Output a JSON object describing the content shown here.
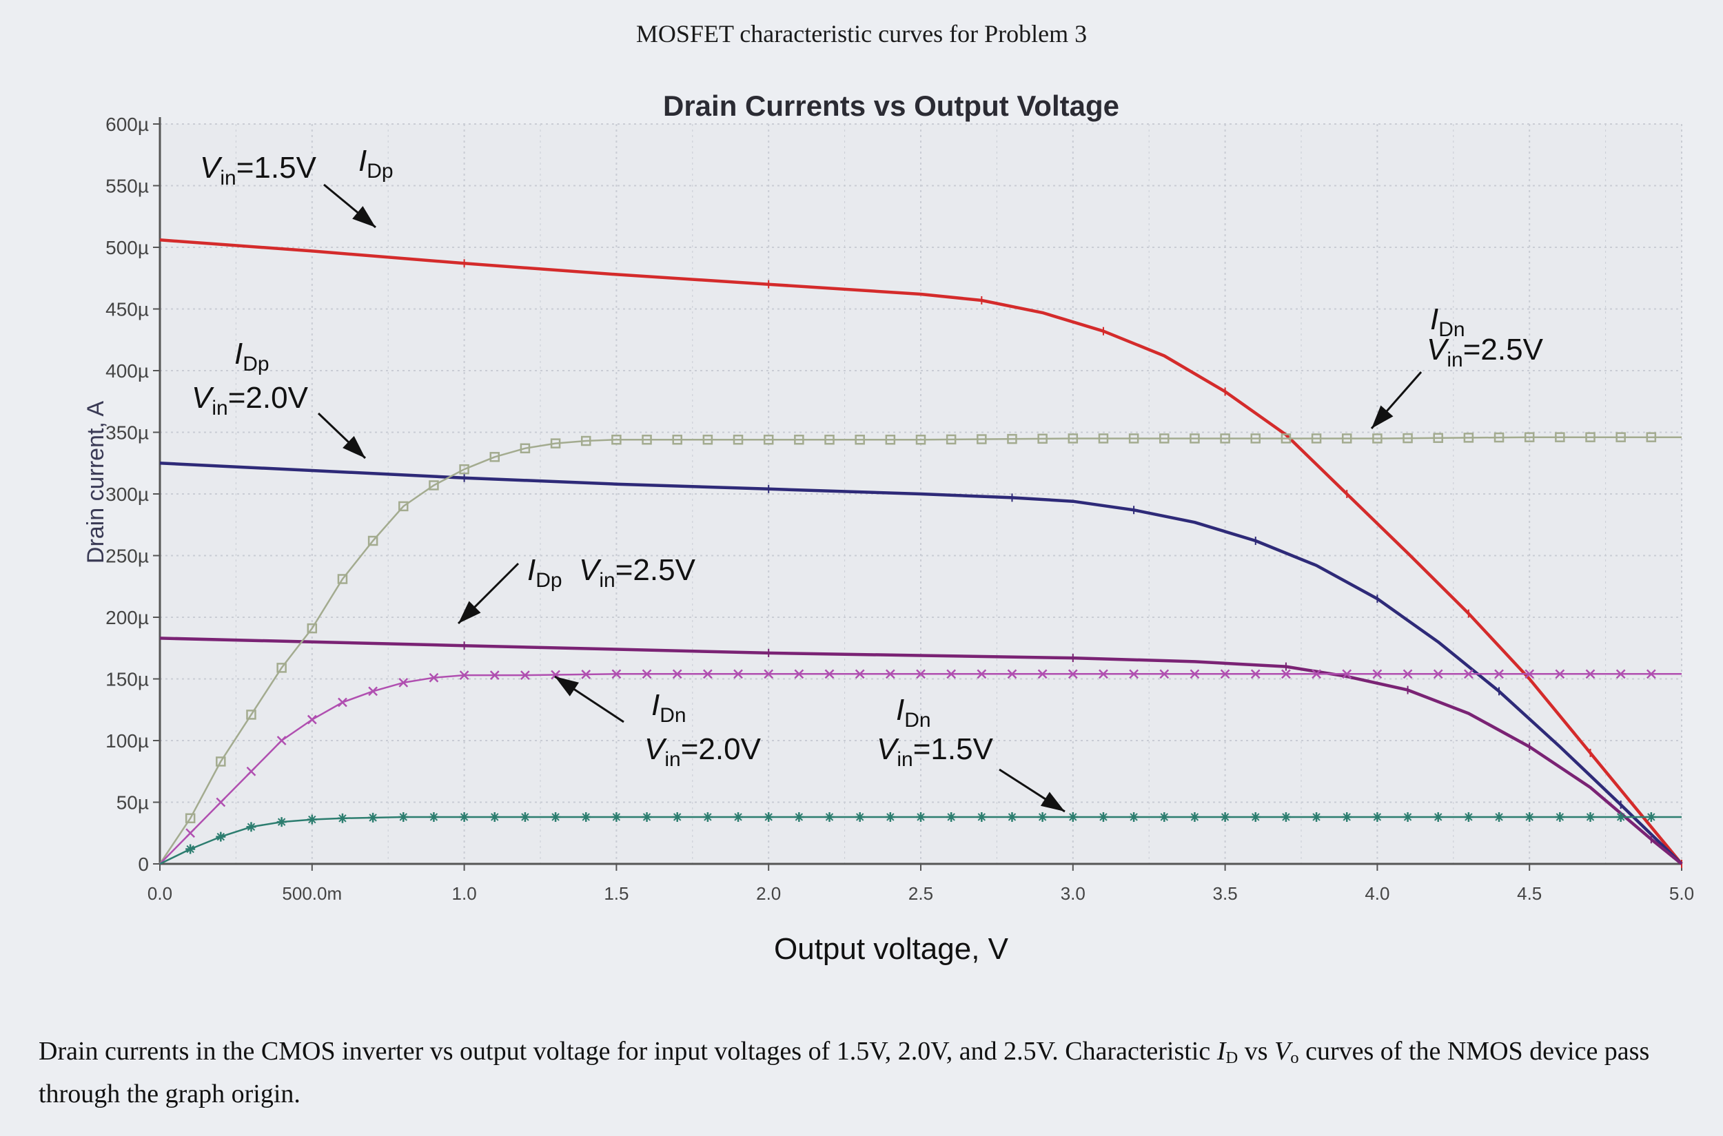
{
  "page_title": "MOSFET characteristic curves for Problem 3",
  "caption": {
    "part1": "Drain currents in the CMOS inverter vs output voltage for input voltages of 1.5V, 2.0V, and 2.5V.  Characteristic ",
    "id_letter": "I",
    "id_sub": "D",
    "part2": " vs ",
    "vo_letter": "V",
    "vo_sub": "o",
    "part3": " curves of the NMOS device pass through the graph origin."
  },
  "colors": {
    "idp_1_5": "#d42b2b",
    "idp_2_0": "#2e2a78",
    "idp_2_5": "#7a2374",
    "idn_2_5": "#a3ab8f",
    "idn_2_0": "#b04fb0",
    "idn_1_5": "#2c7d6f",
    "grid": "#c9ccd4",
    "axis": "#555555"
  },
  "chart_data": {
    "type": "line",
    "title": "Drain Currents vs Output Voltage",
    "xlabel": "Output voltage, V",
    "ylabel": "Drain current, A",
    "xlim": [
      0,
      5
    ],
    "ylim": [
      0,
      600
    ],
    "y_unit": "µA",
    "grid": true,
    "x_ticks": [
      {
        "v": 0,
        "label": "0.0"
      },
      {
        "v": 0.5,
        "label": "500.0m"
      },
      {
        "v": 1,
        "label": "1.0"
      },
      {
        "v": 1.5,
        "label": "1.5"
      },
      {
        "v": 2,
        "label": "2.0"
      },
      {
        "v": 2.5,
        "label": "2.5"
      },
      {
        "v": 3,
        "label": "3.0"
      },
      {
        "v": 3.5,
        "label": "3.5"
      },
      {
        "v": 4,
        "label": "4.0"
      },
      {
        "v": 4.5,
        "label": "4.5"
      },
      {
        "v": 5,
        "label": "5.0"
      }
    ],
    "y_ticks": [
      {
        "v": 0,
        "label": "0"
      },
      {
        "v": 50,
        "label": "50µ"
      },
      {
        "v": 100,
        "label": "100µ"
      },
      {
        "v": 150,
        "label": "150µ"
      },
      {
        "v": 200,
        "label": "200µ"
      },
      {
        "v": 250,
        "label": "250µ"
      },
      {
        "v": 300,
        "label": "300µ"
      },
      {
        "v": 350,
        "label": "350µ"
      },
      {
        "v": 400,
        "label": "400µ"
      },
      {
        "v": 450,
        "label": "450µ"
      },
      {
        "v": 500,
        "label": "500µ"
      },
      {
        "v": 550,
        "label": "550µ"
      },
      {
        "v": 600,
        "label": "600µ"
      }
    ],
    "series": [
      {
        "key": "idp_1_5",
        "marker": "line",
        "x": [
          0,
          0.5,
          1.0,
          1.5,
          2.0,
          2.5,
          2.7,
          2.9,
          3.1,
          3.3,
          3.5,
          3.7,
          3.9,
          4.1,
          4.3,
          4.5,
          4.7,
          4.9,
          5.0
        ],
        "y": [
          506,
          497,
          487,
          478,
          470,
          462,
          457,
          447,
          432,
          412,
          383,
          348,
          300,
          252,
          203,
          150,
          90,
          30,
          0
        ]
      },
      {
        "key": "idp_2_0",
        "marker": "line",
        "x": [
          0,
          0.5,
          1.0,
          1.5,
          2.0,
          2.5,
          2.8,
          3.0,
          3.2,
          3.4,
          3.6,
          3.8,
          4.0,
          4.2,
          4.4,
          4.6,
          4.8,
          5.0
        ],
        "y": [
          325,
          319,
          313,
          308,
          304,
          300,
          297,
          294,
          287,
          277,
          262,
          242,
          215,
          180,
          140,
          95,
          48,
          0
        ]
      },
      {
        "key": "idp_2_5",
        "marker": "line",
        "x": [
          0,
          0.5,
          1.0,
          1.5,
          2.0,
          2.5,
          3.0,
          3.4,
          3.7,
          3.9,
          4.1,
          4.3,
          4.5,
          4.7,
          4.9,
          5.0
        ],
        "y": [
          183,
          180,
          177,
          174,
          171,
          169,
          167,
          164,
          160,
          152,
          141,
          122,
          95,
          62,
          20,
          0
        ]
      },
      {
        "key": "idn_2_5",
        "marker": "square",
        "x": [
          0,
          0.1,
          0.2,
          0.3,
          0.4,
          0.5,
          0.6,
          0.7,
          0.8,
          0.9,
          1.0,
          1.1,
          1.2,
          1.3,
          1.4,
          1.5,
          1.6,
          1.8,
          2.0,
          2.5,
          3.0,
          3.5,
          4.0,
          4.5,
          5.0
        ],
        "y": [
          0,
          37,
          83,
          121,
          159,
          191,
          231,
          262,
          290,
          307,
          320,
          330,
          337,
          341,
          343,
          344,
          344,
          344,
          344,
          344,
          345,
          345,
          345,
          346,
          346
        ]
      },
      {
        "key": "idn_2_0",
        "marker": "cross",
        "x": [
          0,
          0.1,
          0.2,
          0.3,
          0.4,
          0.5,
          0.6,
          0.7,
          0.8,
          0.9,
          1.0,
          1.1,
          1.2,
          1.5,
          2.0,
          2.5,
          3.0,
          3.5,
          4.0,
          4.5,
          5.0
        ],
        "y": [
          0,
          25,
          50,
          75,
          100,
          117,
          131,
          140,
          147,
          151,
          153,
          153,
          153,
          154,
          154,
          154,
          154,
          154,
          154,
          154,
          154
        ]
      },
      {
        "key": "idn_1_5",
        "marker": "star",
        "x": [
          0,
          0.1,
          0.2,
          0.3,
          0.4,
          0.5,
          0.6,
          0.8,
          1.0,
          1.5,
          2.0,
          2.5,
          3.0,
          3.5,
          4.0,
          4.5,
          5.0
        ],
        "y": [
          0,
          12,
          22,
          30,
          34,
          36,
          37,
          38,
          38,
          38,
          38,
          38,
          38,
          38,
          38,
          38,
          38
        ]
      }
    ],
    "annotations": [
      {
        "key": "ann_dp_15",
        "v_main": "V",
        "v_sub": "in",
        "v_rest": "=1.5V",
        "i_main": "I",
        "i_sub": "Dp"
      },
      {
        "key": "ann_dp_20",
        "v_main": "V",
        "v_sub": "in",
        "v_rest": "=2.0V",
        "i_main": "I",
        "i_sub": "Dp"
      },
      {
        "key": "ann_dp_25",
        "v_main": "V",
        "v_sub": "in",
        "v_rest": "=2.5V",
        "i_main": "I",
        "i_sub": "Dp"
      },
      {
        "key": "ann_dn_25",
        "v_main": "V",
        "v_sub": "in",
        "v_rest": "=2.5V",
        "i_main": "I",
        "i_sub": "Dn"
      },
      {
        "key": "ann_dn_20",
        "v_main": "V",
        "v_sub": "in",
        "v_rest": "=2.0V",
        "i_main": "I",
        "i_sub": "Dn"
      },
      {
        "key": "ann_dn_15",
        "v_main": "V",
        "v_sub": "in",
        "v_rest": "=1.5V",
        "i_main": "I",
        "i_sub": "Dn"
      }
    ]
  }
}
